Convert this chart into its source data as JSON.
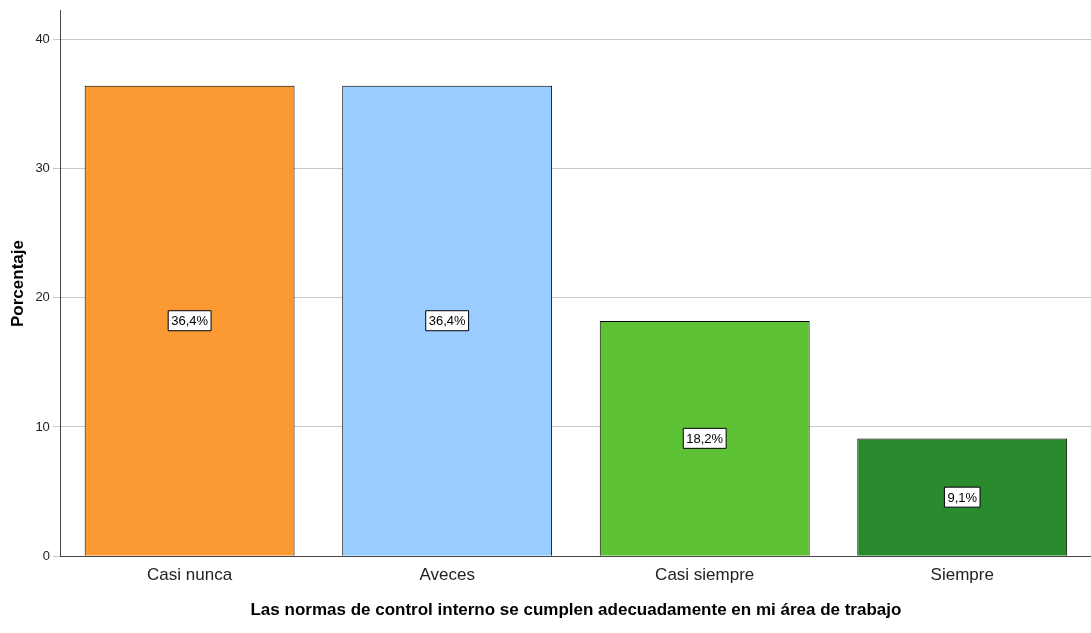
{
  "chart_data": {
    "type": "bar",
    "xlabel": "Las normas de control interno se cumplen adecuadamente en mi área de trabajo",
    "ylabel": "Porcentaje",
    "categories": [
      "Casi nunca",
      "Aveces",
      "Casi siempre",
      "Siempre"
    ],
    "values": [
      36.4,
      36.4,
      18.2,
      9.1
    ],
    "colors": [
      "#fb9a33",
      "#99ccff",
      "#5ec236",
      "#2a8a2e"
    ],
    "value_labels": [
      "36,4%",
      "36,4%",
      "18,2%",
      "9,1%"
    ],
    "ylim": [
      0,
      42.2
    ],
    "yticks": [
      0,
      10,
      20,
      30,
      40
    ],
    "grid": "y",
    "legend": false
  }
}
